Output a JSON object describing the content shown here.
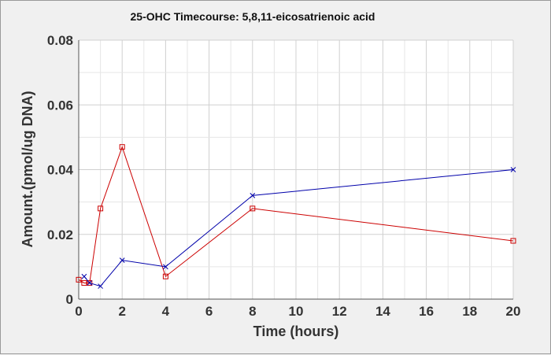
{
  "chart_data": {
    "type": "line",
    "title": "25-OHC Timecourse: 5,8,11-eicosatrienoic acid",
    "xlabel": "Time (hours)",
    "ylabel": "Amount.(pmol/ug DNA)",
    "xlim": [
      0,
      20
    ],
    "ylim": [
      0,
      0.08
    ],
    "xticks": [
      0,
      2,
      4,
      6,
      8,
      10,
      12,
      14,
      16,
      18,
      20
    ],
    "yticks": [
      0,
      0.02,
      0.04,
      0.06,
      0.08
    ],
    "xtick_labels": [
      "0",
      "2",
      "4",
      "6",
      "8",
      "10",
      "12",
      "14",
      "16",
      "18",
      "20"
    ],
    "ytick_labels": [
      "0",
      "0.02",
      "0.04",
      "0.06",
      "0.08"
    ],
    "grid": true,
    "series": [
      {
        "color": "#cc0000",
        "marker": "square",
        "points": [
          {
            "x": 0,
            "y": 0.006
          },
          {
            "x": 0.25,
            "y": 0.005
          },
          {
            "x": 0.5,
            "y": 0.005
          },
          {
            "x": 1,
            "y": 0.028
          },
          {
            "x": 2,
            "y": 0.047
          },
          {
            "x": 4,
            "y": 0.007
          },
          {
            "x": 8,
            "y": 0.028
          },
          {
            "x": 20,
            "y": 0.018
          }
        ]
      },
      {
        "color": "#0000aa",
        "marker": "x",
        "points": [
          {
            "x": 0.25,
            "y": 0.007
          },
          {
            "x": 0.5,
            "y": 0.005
          },
          {
            "x": 1,
            "y": 0.004
          },
          {
            "x": 2,
            "y": 0.012
          },
          {
            "x": 4,
            "y": 0.01
          },
          {
            "x": 8,
            "y": 0.032
          },
          {
            "x": 20,
            "y": 0.04
          }
        ]
      }
    ]
  }
}
